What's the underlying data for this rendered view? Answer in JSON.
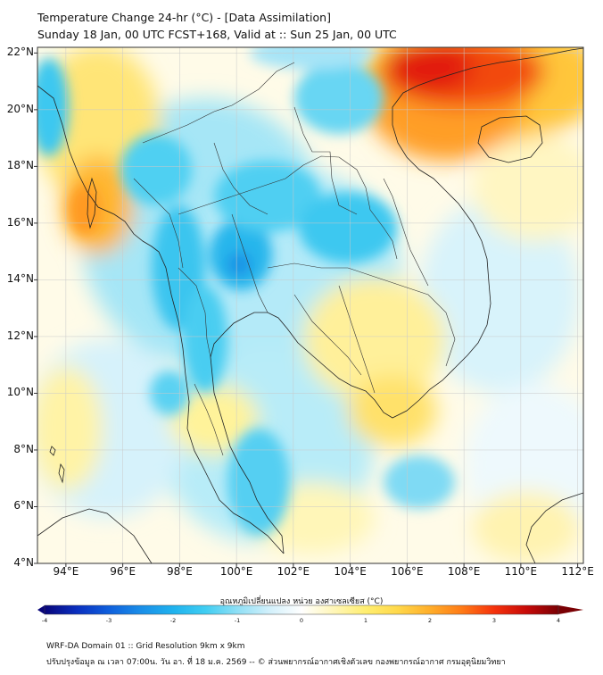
{
  "header": {
    "title": "Temperature Change 24-hr (°C) - [Data Assimilation]",
    "subtitle": "Sunday 18 Jan, 00 UTC FCST+168, Valid at :: Sun 25 Jan, 00 UTC"
  },
  "map": {
    "lat_labels": [
      "22°N",
      "20°N",
      "18°N",
      "16°N",
      "14°N",
      "12°N",
      "10°N",
      "8°N",
      "6°N",
      "4°N"
    ],
    "lon_labels": [
      "94°E",
      "96°E",
      "98°E",
      "100°E",
      "102°E",
      "104°E",
      "106°E",
      "108°E",
      "110°E",
      "112°E"
    ],
    "extent": {
      "lon": [
        93,
        112.2
      ],
      "lat": [
        4,
        22.2
      ]
    },
    "grid": true,
    "colormap": {
      "min": -4,
      "max": 4,
      "stops": [
        [
          -4,
          "#08057a"
        ],
        [
          -3.5,
          "#0a2fbf"
        ],
        [
          -3,
          "#0f5fdc"
        ],
        [
          -2.5,
          "#1a8ee8"
        ],
        [
          -2,
          "#1fb2ee"
        ],
        [
          -1.5,
          "#3fcdf2"
        ],
        [
          -1,
          "#8fdff5"
        ],
        [
          -0.5,
          "#d2f0fb"
        ],
        [
          0,
          "#ffffff"
        ],
        [
          0.5,
          "#fff6b8"
        ],
        [
          1,
          "#ffee70"
        ],
        [
          1.5,
          "#ffd84a"
        ],
        [
          2,
          "#ffae2a"
        ],
        [
          2.5,
          "#ff7a16"
        ],
        [
          3,
          "#f5320c"
        ],
        [
          3.5,
          "#c70a08"
        ],
        [
          4,
          "#7a0004"
        ]
      ]
    }
  },
  "colorbar": {
    "label": "อุณหภูมิเปลี่ยนแปลง หน่วย องศาเซลเซียส (°C)",
    "ticks": [
      "-4",
      "-3",
      "-2",
      "-1",
      "0",
      "1",
      "2",
      "3",
      "4"
    ]
  },
  "footer": {
    "line1": "WRF-DA Domain 01 :: Grid Resolution 9km x 9km",
    "line2": "ปรับปรุงข้อมูล ณ เวลา 07:00น. วัน อา. ที่ 18 ม.ค. 2569 -- © ส่วนพยากรณ์อากาศเชิงตัวเลข กองพยากรณ์อากาศ กรมอุตุนิยมวิทยา"
  }
}
